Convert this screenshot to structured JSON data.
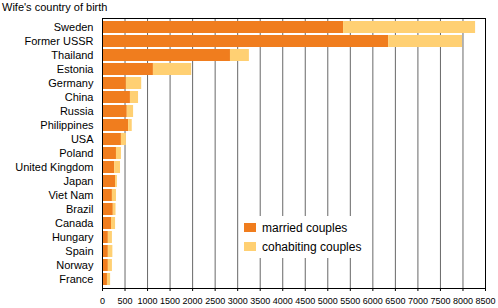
{
  "chart_data": {
    "type": "bar",
    "orientation": "horizontal",
    "stacked": true,
    "y_label": "Wife's country of birth",
    "categories": [
      "Sweden",
      "Former USSR",
      "Thailand",
      "Estonia",
      "Germany",
      "China",
      "Russia",
      "Philippines",
      "USA",
      "Poland",
      "United Kingdom",
      "Japan",
      "Viet Nam",
      "Brazil",
      "Canada",
      "Hungary",
      "Spain",
      "Norway",
      "France"
    ],
    "series": [
      {
        "name": "married couples",
        "color": "#f07d1e",
        "values": [
          5350,
          6350,
          2840,
          1130,
          530,
          620,
          550,
          580,
          420,
          310,
          270,
          290,
          220,
          240,
          200,
          130,
          130,
          130,
          110
        ]
      },
      {
        "name": "cohabiting couples",
        "color": "#ffd073",
        "values": [
          2930,
          1640,
          420,
          850,
          340,
          180,
          140,
          80,
          110,
          110,
          130,
          40,
          90,
          60,
          90,
          90,
          100,
          90,
          70
        ]
      }
    ],
    "xlim": [
      0,
      8500
    ],
    "xticks": [
      0,
      500,
      1000,
      1500,
      2000,
      2500,
      3000,
      3500,
      4000,
      4500,
      5000,
      5500,
      6000,
      6500,
      7000,
      7500,
      8000,
      8500
    ],
    "grid": true,
    "legend": "lower right"
  }
}
